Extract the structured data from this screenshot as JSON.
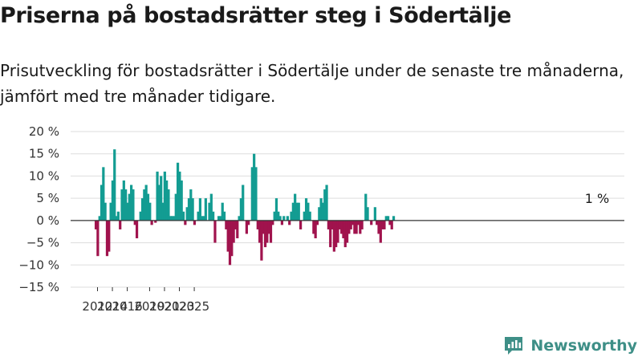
{
  "title": "Priserna på bostadsrätter steg i Södertälje",
  "subtitle": "Prisutveckling för bostadsrätter i Södertälje under de senaste tre månaderna, jämfört med tre månader tidigare.",
  "brand": "Newsworthy",
  "colors": {
    "positive": "#139c92",
    "negative": "#a0134d",
    "grid": "#dddddd",
    "axis": "#333333",
    "brand": "#3e8f87"
  },
  "chart_data": {
    "type": "bar",
    "title": "Priserna på bostadsrätter steg i Södertälje",
    "subtitle": "Prisutveckling för bostadsrätter i Södertälje under de senaste tre månaderna, jämfört med tre månader tidigare.",
    "x_tick_labels": [
      "2012",
      "2014",
      "2016",
      "2019",
      "2021",
      "2023",
      "2025"
    ],
    "y_tick_labels": [
      "20 %",
      "15 %",
      "10 %",
      "5 %",
      "0 %",
      "−5 %",
      "−10 %",
      "−15 %"
    ],
    "ylim": [
      -15,
      20
    ],
    "y_ticks": [
      20,
      15,
      10,
      5,
      0,
      -5,
      -10,
      -15
    ],
    "grid": true,
    "annotation": {
      "text": "1 %",
      "value": 1
    },
    "x_start": "2011-10",
    "x_end": "2025-07",
    "values": [
      -2,
      -8,
      1,
      8,
      12,
      4,
      -8,
      -7,
      4,
      9,
      16,
      1,
      2,
      -2,
      7,
      9,
      7,
      4,
      6,
      8,
      7,
      -1,
      -4,
      0,
      2,
      5,
      7,
      8,
      6,
      4,
      -1,
      0,
      -0.5,
      11,
      8,
      10,
      4,
      11,
      9,
      7,
      1,
      1,
      1,
      6,
      13,
      11,
      9,
      2,
      -1,
      3,
      5,
      7,
      5,
      -1,
      0,
      2,
      5,
      1,
      1,
      5,
      0,
      4,
      6,
      2,
      -5,
      0,
      1,
      1,
      4,
      2,
      -2,
      -7,
      -10,
      -8,
      -5,
      -2,
      -4,
      1,
      5,
      8,
      0,
      -3,
      -1,
      0,
      12,
      15,
      12,
      -2,
      -5,
      -9,
      -3,
      -6,
      -5,
      -3,
      -5,
      -1,
      2,
      5,
      2,
      1,
      -1,
      1,
      0,
      1,
      -1,
      2,
      4,
      6,
      4,
      4,
      -2,
      0,
      2,
      5,
      4,
      2,
      0,
      -3,
      -4,
      -1,
      3,
      5,
      4,
      7,
      8,
      -2,
      -6,
      -2,
      -7,
      -6,
      -5,
      -2,
      -3,
      -4,
      -6,
      -5,
      -3,
      -2,
      -1,
      -3,
      -3,
      -1,
      -3,
      -2,
      0,
      6,
      3,
      0,
      -1,
      0,
      3,
      -1,
      -3,
      -5,
      -2,
      -2,
      1,
      1,
      -1,
      -2,
      1
    ]
  }
}
